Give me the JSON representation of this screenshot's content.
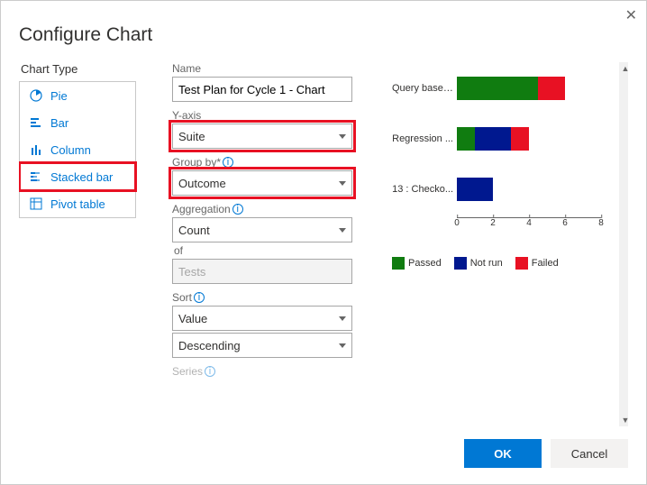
{
  "dialog": {
    "title": "Configure Chart"
  },
  "chart_type": {
    "label": "Chart Type",
    "items": [
      {
        "name": "Pie"
      },
      {
        "name": "Bar"
      },
      {
        "name": "Column"
      },
      {
        "name": "Stacked bar",
        "highlighted": true
      },
      {
        "name": "Pivot table"
      }
    ]
  },
  "form": {
    "name_label": "Name",
    "name_value": "Test Plan for Cycle 1 - Chart",
    "yaxis_label": "Y-axis",
    "yaxis_value": "Suite",
    "groupby_label": "Group by*",
    "groupby_value": "Outcome",
    "aggregation_label": "Aggregation",
    "aggregation_value": "Count",
    "of_label": "of",
    "of_value": "Tests",
    "sort_label": "Sort",
    "sort_field": "Value",
    "sort_dir": "Descending",
    "series_label": "Series"
  },
  "chart": {
    "type": "stacked-bar",
    "xlim": [
      0,
      8
    ],
    "xtick_step": 2,
    "ticks": [
      "0",
      "2",
      "4",
      "6",
      "8"
    ],
    "colors": {
      "Passed": "#107c10",
      "Not run": "#00188f",
      "Failed": "#e81123"
    },
    "legend": [
      "Passed",
      "Not run",
      "Failed"
    ],
    "rows": [
      {
        "label": "Query based...",
        "segments": [
          {
            "series": "Passed",
            "value": 4.5
          },
          {
            "series": "Failed",
            "value": 1.5
          }
        ]
      },
      {
        "label": "Regression ...",
        "segments": [
          {
            "series": "Passed",
            "value": 1
          },
          {
            "series": "Not run",
            "value": 2
          },
          {
            "series": "Failed",
            "value": 1
          }
        ]
      },
      {
        "label": "13 : Checko...",
        "segments": [
          {
            "series": "Not run",
            "value": 2
          }
        ]
      }
    ]
  },
  "buttons": {
    "ok": "OK",
    "cancel": "Cancel"
  }
}
